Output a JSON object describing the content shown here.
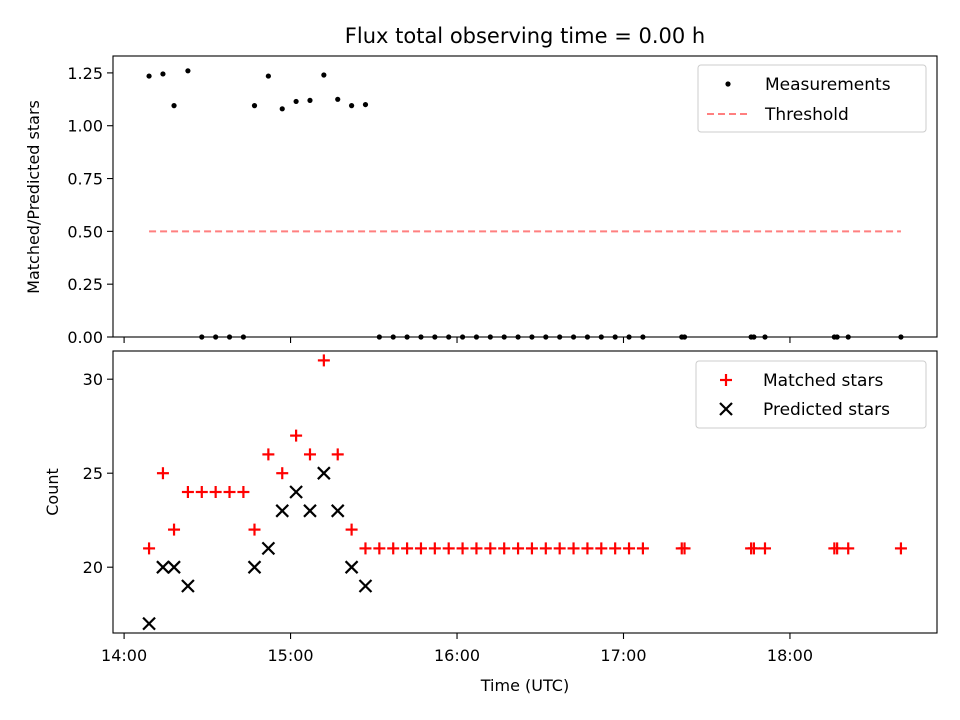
{
  "chart_data": [
    {
      "type": "scatter",
      "title": "Flux total observing time = 0.00 h",
      "xlabel": "",
      "ylabel": "Matched/Predicted stars",
      "xlim": [
        "13:56",
        "18:53"
      ],
      "ylim": [
        0.0,
        1.33
      ],
      "yticks": [
        0.0,
        0.25,
        0.5,
        0.75,
        1.0,
        1.25
      ],
      "ytick_labels": [
        "0.00",
        "0.25",
        "0.50",
        "0.75",
        "1.00",
        "1.25"
      ],
      "xticks": [
        "14:00",
        "15:00",
        "16:00",
        "17:00",
        "18:00"
      ],
      "xtick_labels_visible": false,
      "legend": {
        "location": "upper right",
        "entries": [
          "Measurements",
          "Threshold"
        ]
      },
      "series": [
        {
          "name": "Measurements",
          "kind": "scatter",
          "marker": "dot",
          "color": "#000000",
          "points": [
            [
              "14:09",
              1.235
            ],
            [
              "14:14",
              1.245
            ],
            [
              "14:18",
              1.095
            ],
            [
              "14:23",
              1.26
            ],
            [
              "14:28",
              0
            ],
            [
              "14:33",
              0
            ],
            [
              "14:38",
              0
            ],
            [
              "14:43",
              0
            ],
            [
              "14:47",
              1.095
            ],
            [
              "14:52",
              1.235
            ],
            [
              "14:57",
              1.08
            ],
            [
              "15:02",
              1.115
            ],
            [
              "15:07",
              1.12
            ],
            [
              "15:12",
              1.24
            ],
            [
              "15:17",
              1.125
            ],
            [
              "15:22",
              1.095
            ],
            [
              "15:27",
              1.1
            ],
            [
              "15:32",
              0
            ],
            [
              "15:37",
              0
            ],
            [
              "15:42",
              0
            ],
            [
              "15:47",
              0
            ],
            [
              "15:52",
              0
            ],
            [
              "15:57",
              0
            ],
            [
              "16:02",
              0
            ],
            [
              "16:07",
              0
            ],
            [
              "16:12",
              0
            ],
            [
              "16:17",
              0
            ],
            [
              "16:22",
              0
            ],
            [
              "16:27",
              0
            ],
            [
              "16:32",
              0
            ],
            [
              "16:37",
              0
            ],
            [
              "16:42",
              0
            ],
            [
              "16:47",
              0
            ],
            [
              "16:52",
              0
            ],
            [
              "16:57",
              0
            ],
            [
              "17:02",
              0
            ],
            [
              "17:07",
              0
            ],
            [
              "17:21",
              0
            ],
            [
              "17:22",
              0
            ],
            [
              "17:46",
              0
            ],
            [
              "17:47",
              0
            ],
            [
              "17:51",
              0
            ],
            [
              "18:16",
              0
            ],
            [
              "18:17",
              0
            ],
            [
              "18:21",
              0
            ],
            [
              "18:40",
              0
            ]
          ]
        },
        {
          "name": "Threshold",
          "kind": "line",
          "dash": "dashed",
          "color": "#ff7f7f",
          "points": [
            [
              "14:09",
              0.5
            ],
            [
              "18:40",
              0.5
            ]
          ]
        }
      ]
    },
    {
      "type": "scatter",
      "title": "",
      "xlabel": "Time (UTC)",
      "ylabel": "Count",
      "xlim": [
        "13:56",
        "18:53"
      ],
      "ylim": [
        16.5,
        31.5
      ],
      "yticks": [
        20,
        25,
        30
      ],
      "ytick_labels": [
        "20",
        "25",
        "30"
      ],
      "xticks": [
        "14:00",
        "15:00",
        "16:00",
        "17:00",
        "18:00"
      ],
      "xtick_labels": [
        "14:00",
        "15:00",
        "16:00",
        "17:00",
        "18:00"
      ],
      "legend": {
        "location": "upper right",
        "entries": [
          "Matched stars",
          "Predicted stars"
        ]
      },
      "series": [
        {
          "name": "Matched stars",
          "kind": "scatter",
          "marker": "plus",
          "color": "#ff0000",
          "points": [
            [
              "14:09",
              21
            ],
            [
              "14:14",
              25
            ],
            [
              "14:18",
              22
            ],
            [
              "14:23",
              24
            ],
            [
              "14:28",
              24
            ],
            [
              "14:33",
              24
            ],
            [
              "14:38",
              24
            ],
            [
              "14:43",
              24
            ],
            [
              "14:47",
              22
            ],
            [
              "14:52",
              26
            ],
            [
              "14:57",
              25
            ],
            [
              "15:02",
              27
            ],
            [
              "15:07",
              26
            ],
            [
              "15:12",
              31
            ],
            [
              "15:17",
              26
            ],
            [
              "15:22",
              22
            ],
            [
              "15:27",
              21
            ],
            [
              "15:32",
              21
            ],
            [
              "15:37",
              21
            ],
            [
              "15:42",
              21
            ],
            [
              "15:47",
              21
            ],
            [
              "15:52",
              21
            ],
            [
              "15:57",
              21
            ],
            [
              "16:02",
              21
            ],
            [
              "16:07",
              21
            ],
            [
              "16:12",
              21
            ],
            [
              "16:17",
              21
            ],
            [
              "16:22",
              21
            ],
            [
              "16:27",
              21
            ],
            [
              "16:32",
              21
            ],
            [
              "16:37",
              21
            ],
            [
              "16:42",
              21
            ],
            [
              "16:47",
              21
            ],
            [
              "16:52",
              21
            ],
            [
              "16:57",
              21
            ],
            [
              "17:02",
              21
            ],
            [
              "17:07",
              21
            ],
            [
              "17:21",
              21
            ],
            [
              "17:22",
              21
            ],
            [
              "17:46",
              21
            ],
            [
              "17:47",
              21
            ],
            [
              "17:51",
              21
            ],
            [
              "18:16",
              21
            ],
            [
              "18:17",
              21
            ],
            [
              "18:21",
              21
            ],
            [
              "18:40",
              21
            ]
          ]
        },
        {
          "name": "Predicted stars",
          "kind": "scatter",
          "marker": "x",
          "color": "#000000",
          "points": [
            [
              "14:09",
              17
            ],
            [
              "14:14",
              20
            ],
            [
              "14:18",
              20
            ],
            [
              "14:23",
              19
            ],
            [
              "14:47",
              20
            ],
            [
              "14:52",
              21
            ],
            [
              "14:57",
              23
            ],
            [
              "15:02",
              24
            ],
            [
              "15:07",
              23
            ],
            [
              "15:12",
              25
            ],
            [
              "15:17",
              23
            ],
            [
              "15:22",
              20
            ],
            [
              "15:27",
              19
            ]
          ]
        }
      ]
    }
  ]
}
